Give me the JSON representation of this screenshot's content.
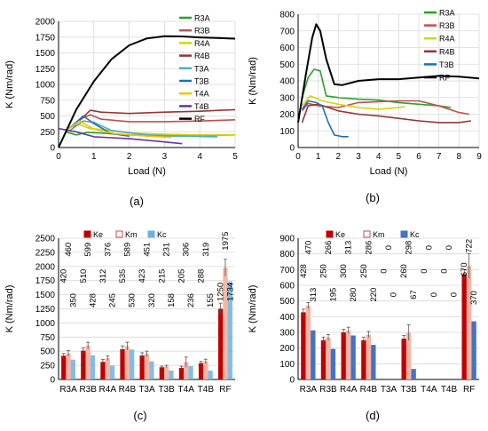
{
  "panel_labels": [
    "(a)",
    "(b)",
    "(c)",
    "(d)"
  ],
  "chart_data": [
    {
      "id": "a",
      "type": "line",
      "xlabel": "Load (N)",
      "ylabel": "K (Nm/rad)",
      "xlim": [
        0,
        5
      ],
      "ylim": [
        0,
        2000
      ],
      "xticks": [
        0,
        1,
        2,
        3,
        4,
        5
      ],
      "yticks": [
        0,
        250,
        500,
        750,
        1000,
        1250,
        1500,
        1750,
        2000
      ],
      "grid": true,
      "legend": "right",
      "series": [
        {
          "name": "R3A",
          "color": "#2ca02c",
          "points": [
            [
              0.2,
              250
            ],
            [
              0.5,
              200
            ],
            [
              0.8,
              240
            ],
            [
              1.2,
              230
            ],
            [
              2,
              200
            ],
            [
              3,
              180
            ],
            [
              4,
              190
            ],
            [
              5,
              200
            ]
          ]
        },
        {
          "name": "R3B",
          "color": "#c0504d",
          "points": [
            [
              0.4,
              300
            ],
            [
              0.6,
              450
            ],
            [
              0.9,
              520
            ],
            [
              1.2,
              450
            ],
            [
              2,
              410
            ],
            [
              3,
              410
            ],
            [
              4,
              420
            ],
            [
              5,
              440
            ]
          ]
        },
        {
          "name": "R4A",
          "color": "#d4d400",
          "points": [
            [
              0.2,
              280
            ],
            [
              0.5,
              380
            ],
            [
              0.9,
              300
            ],
            [
              1.3,
              280
            ],
            [
              2,
              230
            ],
            [
              3,
              210
            ],
            [
              4,
              200
            ],
            [
              5,
              200
            ]
          ]
        },
        {
          "name": "R4B",
          "color": "#943634",
          "points": [
            [
              0.6,
              430
            ],
            [
              0.9,
              590
            ],
            [
              1.2,
              560
            ],
            [
              2,
              540
            ],
            [
              3,
              560
            ],
            [
              4,
              575
            ],
            [
              5,
              600
            ]
          ]
        },
        {
          "name": "T3A",
          "color": "#4bacc6",
          "points": [
            [
              0.3,
              260
            ],
            [
              0.7,
              420
            ],
            [
              1.0,
              400
            ],
            [
              1.5,
              270
            ],
            [
              2.5,
              200
            ],
            [
              3.5,
              180
            ],
            [
              4.5,
              170
            ]
          ]
        },
        {
          "name": "T3B",
          "color": "#1f6fb5",
          "points": [
            [
              0.3,
              300
            ],
            [
              0.7,
              500
            ],
            [
              1.0,
              380
            ],
            [
              1.5,
              220
            ],
            [
              2.0,
              180
            ]
          ]
        },
        {
          "name": "T4A",
          "color": "#f2c200",
          "points": [
            [
              0.3,
              300
            ],
            [
              0.6,
              420
            ],
            [
              1.0,
              290
            ],
            [
              1.6,
              220
            ],
            [
              2.5,
              180
            ],
            [
              3.2,
              160
            ]
          ]
        },
        {
          "name": "T4B",
          "color": "#7030a0",
          "points": [
            [
              0,
              300
            ],
            [
              0.5,
              250
            ],
            [
              1,
              170
            ],
            [
              2,
              140
            ],
            [
              2.8,
              100
            ],
            [
              3.5,
              60
            ]
          ]
        },
        {
          "name": "RF",
          "color": "#000000",
          "points": [
            [
              0,
              0
            ],
            [
              0.5,
              600
            ],
            [
              1,
              1050
            ],
            [
              1.5,
              1400
            ],
            [
              2,
              1620
            ],
            [
              2.5,
              1730
            ],
            [
              3,
              1765
            ],
            [
              3.5,
              1760
            ],
            [
              4,
              1745
            ],
            [
              4.5,
              1735
            ],
            [
              5,
              1725
            ]
          ]
        }
      ]
    },
    {
      "id": "b",
      "type": "line",
      "xlabel": "Load (N)",
      "ylabel": "K (Nm/rad)",
      "xlim": [
        0,
        9
      ],
      "ylim": [
        0,
        800
      ],
      "xticks": [
        0,
        1,
        2,
        3,
        4,
        5,
        6,
        7,
        8,
        9
      ],
      "yticks": [
        0,
        100,
        200,
        300,
        400,
        500,
        600,
        700,
        800
      ],
      "grid": true,
      "legend": "top-right",
      "series": [
        {
          "name": "R3A",
          "color": "#2ca02c",
          "points": [
            [
              0.2,
              300
            ],
            [
              0.5,
              420
            ],
            [
              0.8,
              470
            ],
            [
              1.1,
              460
            ],
            [
              1.4,
              310
            ],
            [
              2,
              300
            ],
            [
              3,
              290
            ],
            [
              4,
              285
            ],
            [
              5,
              270
            ],
            [
              6,
              260
            ],
            [
              7,
              250
            ],
            [
              7.6,
              240
            ]
          ]
        },
        {
          "name": "R3B",
          "color": "#c0504d",
          "points": [
            [
              0.2,
              220
            ],
            [
              0.5,
              265
            ],
            [
              1,
              250
            ],
            [
              2,
              240
            ],
            [
              3,
              270
            ],
            [
              4,
              275
            ],
            [
              5,
              280
            ],
            [
              6,
              280
            ],
            [
              7,
              250
            ],
            [
              8,
              210
            ],
            [
              8.5,
              200
            ]
          ]
        },
        {
          "name": "R4A",
          "color": "#d4d400",
          "points": [
            [
              0.2,
              250
            ],
            [
              0.6,
              310
            ],
            [
              1.2,
              280
            ],
            [
              2,
              260
            ],
            [
              3,
              240
            ],
            [
              4,
              230
            ],
            [
              5,
              240
            ],
            [
              5.3,
              245
            ]
          ]
        },
        {
          "name": "R4B",
          "color": "#943634",
          "points": [
            [
              0.2,
              150
            ],
            [
              0.5,
              250
            ],
            [
              1,
              260
            ],
            [
              2,
              220
            ],
            [
              3,
              200
            ],
            [
              4,
              190
            ],
            [
              5,
              175
            ],
            [
              6,
              160
            ],
            [
              7,
              150
            ],
            [
              8,
              150
            ],
            [
              8.6,
              160
            ]
          ]
        },
        {
          "name": "T3B",
          "color": "#1f6fb5",
          "points": [
            [
              0.2,
              230
            ],
            [
              0.5,
              280
            ],
            [
              0.9,
              270
            ],
            [
              1.2,
              250
            ],
            [
              1.5,
              150
            ],
            [
              1.8,
              75
            ],
            [
              2.2,
              65
            ],
            [
              2.5,
              65
            ]
          ]
        },
        {
          "name": "RF",
          "color": "#000000",
          "points": [
            [
              0,
              150
            ],
            [
              0.4,
              450
            ],
            [
              0.7,
              660
            ],
            [
              0.9,
              740
            ],
            [
              1.1,
              700
            ],
            [
              1.4,
              530
            ],
            [
              1.8,
              380
            ],
            [
              2.2,
              375
            ],
            [
              3,
              400
            ],
            [
              4,
              410
            ],
            [
              5,
              410
            ],
            [
              6,
              420
            ],
            [
              7,
              430
            ],
            [
              8,
              425
            ],
            [
              9,
              415
            ]
          ]
        }
      ]
    },
    {
      "id": "c",
      "type": "bar",
      "ylabel": "K (Nm/rad)",
      "ylim": [
        0,
        2500
      ],
      "yticks": [
        0,
        250,
        500,
        750,
        1000,
        1250,
        1500,
        1750,
        2000,
        2250,
        2500
      ],
      "grid": true,
      "legend": "top",
      "categories": [
        "R3A",
        "R3B",
        "R4A",
        "R4B",
        "T3A",
        "T3B",
        "T4A",
        "T4B",
        "RF"
      ],
      "series": [
        {
          "name": "Ke",
          "color": "#c00000",
          "values": [
            420,
            510,
            312,
            535,
            423,
            215,
            205,
            288,
            1250
          ]
        },
        {
          "name": "Km",
          "color": "#f4b6a6",
          "values": [
            460,
            599,
            376,
            589,
            451,
            231,
            306,
            319,
            1975
          ]
        },
        {
          "name": "Kc",
          "color": "#70b0e0",
          "values": [
            350,
            428,
            245,
            530,
            320,
            158,
            236,
            155,
            1734
          ]
        }
      ],
      "errors": {
        "Ke": [
          40,
          50,
          40,
          60,
          50,
          20,
          30,
          30,
          100
        ],
        "Km": [
          50,
          60,
          40,
          70,
          50,
          20,
          90,
          40,
          150
        ],
        "Kc": [
          0,
          0,
          0,
          0,
          0,
          0,
          0,
          0,
          0
        ]
      }
    },
    {
      "id": "d",
      "type": "bar",
      "ylabel": "K (Nm/rad)",
      "ylim": [
        0,
        900
      ],
      "yticks": [
        0,
        100,
        200,
        300,
        400,
        500,
        600,
        700,
        800,
        900
      ],
      "grid": true,
      "legend": "top",
      "categories": [
        "R3A",
        "R3B",
        "R4A",
        "R4B",
        "T3A",
        "T3B",
        "T4A",
        "T4B",
        "RF"
      ],
      "series": [
        {
          "name": "Ke",
          "color": "#c00000",
          "values": [
            428,
            250,
            300,
            250,
            0,
            260,
            0,
            0,
            670
          ]
        },
        {
          "name": "Km",
          "color": "#f4b6a6",
          "values": [
            470,
            266,
            313,
            286,
            0,
            298,
            0,
            0,
            722
          ]
        },
        {
          "name": "Kc",
          "color": "#4472c4",
          "values": [
            313,
            195,
            280,
            220,
            0,
            67,
            0,
            0,
            370
          ]
        }
      ],
      "errors": {
        "Ke": [
          20,
          20,
          20,
          20,
          0,
          20,
          0,
          0,
          30
        ],
        "Km": [
          20,
          20,
          20,
          20,
          0,
          50,
          0,
          0,
          80
        ],
        "Kc": [
          0,
          0,
          0,
          0,
          0,
          0,
          0,
          0,
          0
        ]
      }
    }
  ]
}
